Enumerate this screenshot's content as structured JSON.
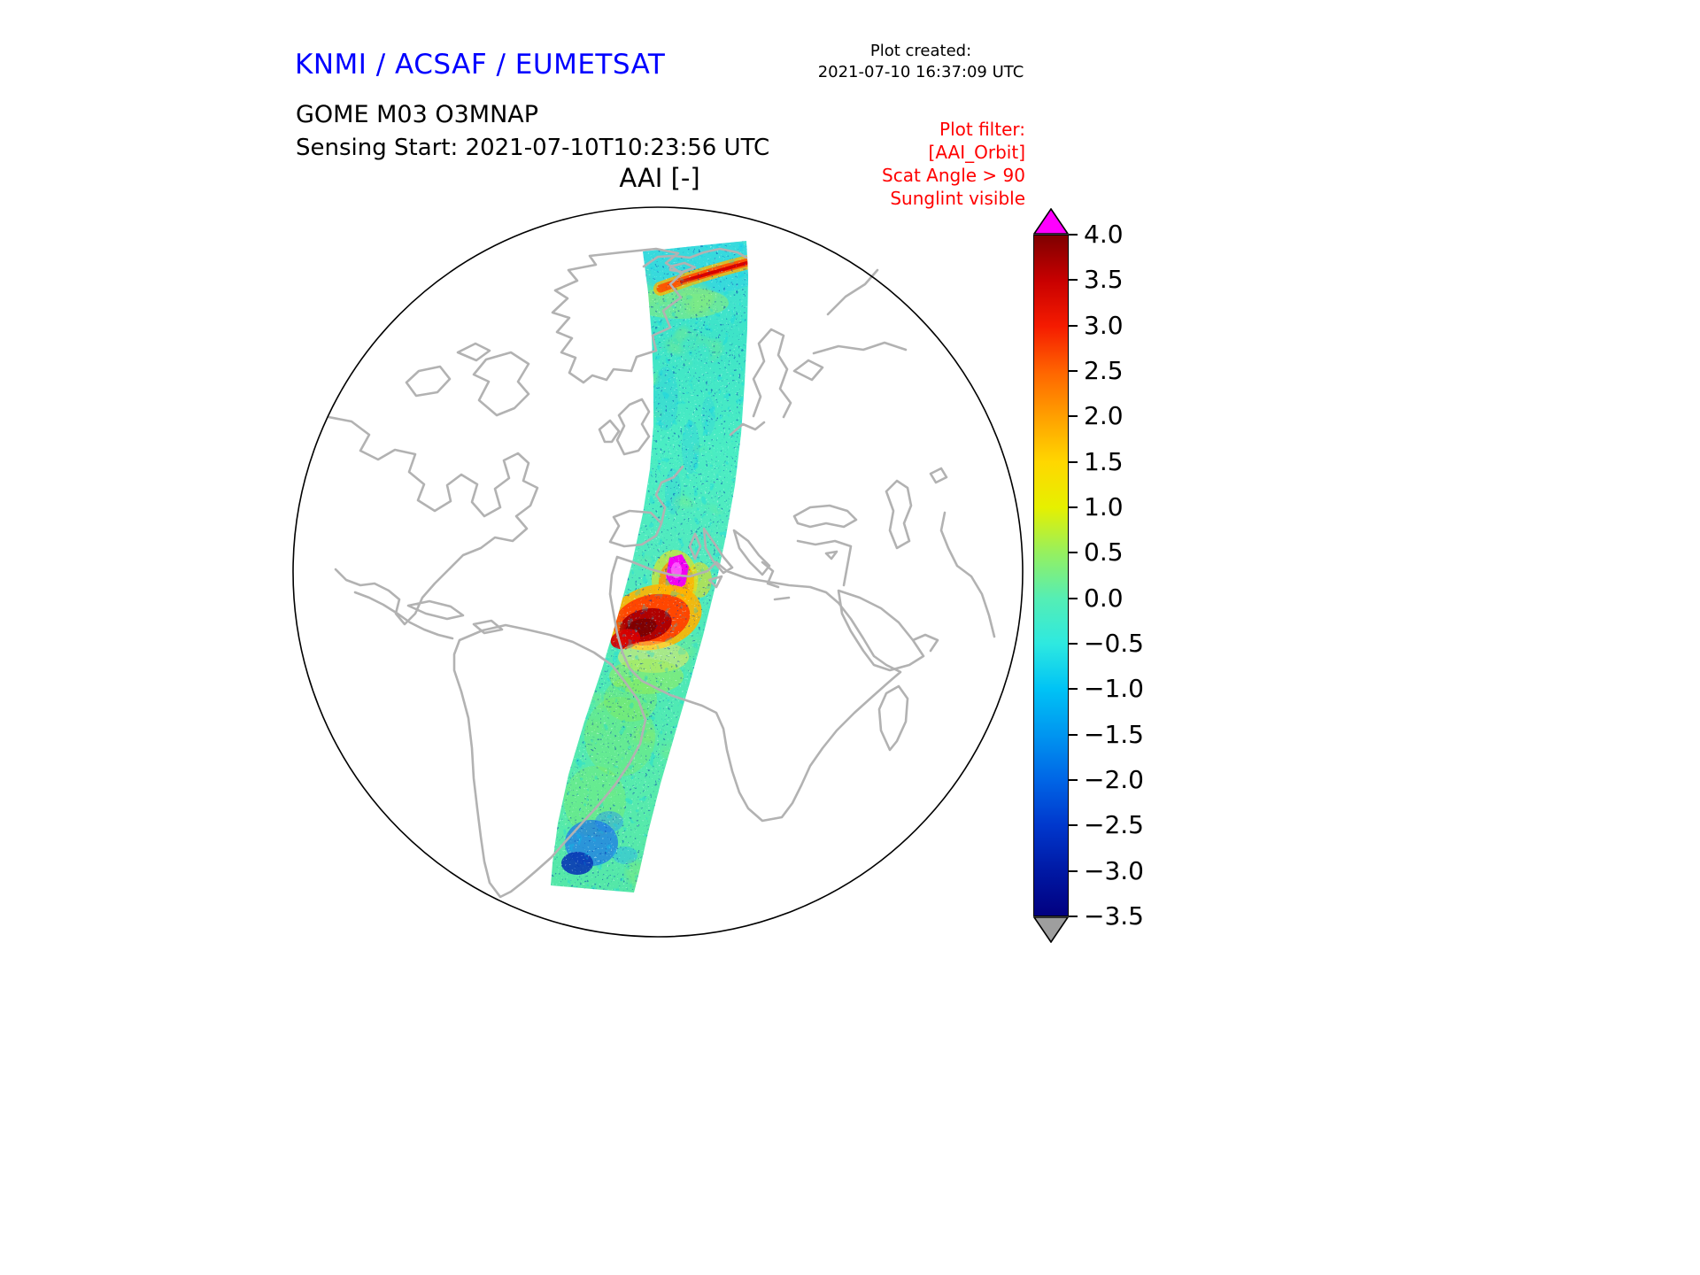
{
  "header": {
    "brand": "KNMI / ACSAF / EUMETSAT",
    "brand_color": "#0000ff",
    "plot_created_label": "Plot created:",
    "plot_created_value": "2021-07-10 16:37:09 UTC",
    "product_line": "GOME M03 O3MNAP",
    "sensing_line": "Sensing Start: 2021-07-10T10:23:56 UTC",
    "plot_title": "AAI [-]"
  },
  "plot_filter": {
    "color": "#ff0000",
    "lines": [
      "Plot filter:",
      "[AAI_Orbit]",
      "Scat Angle > 90",
      "Sunglint visible"
    ]
  },
  "map": {
    "projection": "orthographic globe, Atlantic / Europe / Africa view",
    "coastline_color": "#b2b2b2",
    "globe_outline_color": "#000000"
  },
  "chart_data": {
    "type": "heatmap",
    "title": "AAI [-]",
    "variable": "Absorbing Aerosol Index (dimensionless)",
    "instrument": "GOME on Metop (M03), product O3MNAP",
    "sensing_start": "2021-07-10T10:23:56 UTC",
    "legend_position": "right vertical colorbar",
    "colorbar": {
      "range": [
        -3.5,
        4.0
      ],
      "tick_step": 0.5,
      "ticks": [
        "4.0",
        "3.5",
        "3.0",
        "2.5",
        "2.0",
        "1.5",
        "1.0",
        "0.5",
        "0.0",
        "−0.5",
        "−1.0",
        "−1.5",
        "−2.0",
        "−2.5",
        "−3.0",
        "−3.5"
      ],
      "over_arrow_color": "#ff00ff",
      "under_arrow_color": "#9e9e9e",
      "stops": [
        {
          "value": 4.0,
          "color": "#7f0000"
        },
        {
          "value": 3.5,
          "color": "#c80000"
        },
        {
          "value": 3.0,
          "color": "#f51b00"
        },
        {
          "value": 2.5,
          "color": "#ff6400"
        },
        {
          "value": 2.0,
          "color": "#ffa000"
        },
        {
          "value": 1.5,
          "color": "#ffd700"
        },
        {
          "value": 1.0,
          "color": "#e6f000"
        },
        {
          "value": 0.5,
          "color": "#96f05f"
        },
        {
          "value": 0.0,
          "color": "#55eeb4"
        },
        {
          "value": -0.5,
          "color": "#2ee9e0"
        },
        {
          "value": -1.0,
          "color": "#00c3f5"
        },
        {
          "value": -1.5,
          "color": "#0096f0"
        },
        {
          "value": -2.0,
          "color": "#0066e6"
        },
        {
          "value": -2.5,
          "color": "#0038cd"
        },
        {
          "value": -3.0,
          "color": "#0019a5"
        },
        {
          "value": -3.5,
          "color": "#020080"
        }
      ]
    },
    "swath": {
      "description": "single descending orbit swath from the Arctic across western Europe and northwest Africa into the South Atlantic",
      "background_value_range": "mostly −0.5 to +0.5 (speckled teal/green)",
      "features": [
        {
          "location": "Arctic / top of swath",
          "approx_value": "2.5 to 3.5",
          "appearance": "orange-red streak"
        },
        {
          "location": "central Mediterranean",
          "approx_value": "> 4.0",
          "appearance": "magenta over-range spot"
        },
        {
          "location": "northwest Africa (dust plume)",
          "approx_value": "3.0 to 4.0",
          "appearance": "red / dark-red patch with orange halo"
        },
        {
          "location": "South Atlantic / bottom",
          "approx_value": "−1.5 to −3.0",
          "appearance": "blue / navy speckle"
        }
      ]
    }
  }
}
